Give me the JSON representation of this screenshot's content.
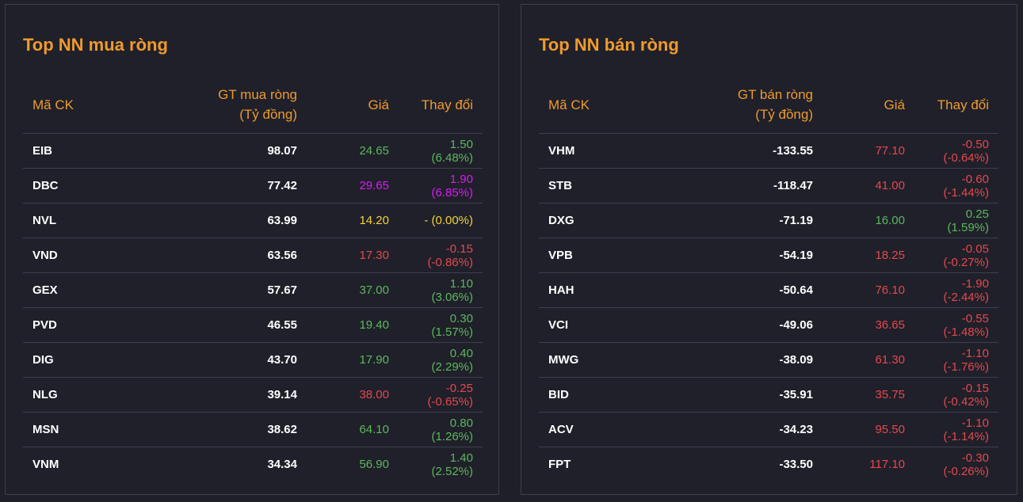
{
  "colors": {
    "up": "#5cb85c",
    "down": "#e5484d",
    "ceiling": "#d91cf0",
    "reference": "#f2d33a",
    "accent": "#ef9a2c"
  },
  "buy": {
    "title": "Top NN mua ròng",
    "headers": {
      "symbol": "Mã CK",
      "value_line1": "GT mua ròng",
      "value_line2": "(Tỷ đồng)",
      "price": "Giá",
      "change": "Thay đổi"
    },
    "rows": [
      {
        "symbol": "EIB",
        "value": "98.07",
        "price": "24.65",
        "change": "1.50 (6.48%)",
        "status": "up"
      },
      {
        "symbol": "DBC",
        "value": "77.42",
        "price": "29.65",
        "change": "1.90 (6.85%)",
        "status": "ceiling"
      },
      {
        "symbol": "NVL",
        "value": "63.99",
        "price": "14.20",
        "change": "- (0.00%)",
        "status": "reference"
      },
      {
        "symbol": "VND",
        "value": "63.56",
        "price": "17.30",
        "change": "-0.15 (-0.86%)",
        "status": "down"
      },
      {
        "symbol": "GEX",
        "value": "57.67",
        "price": "37.00",
        "change": "1.10 (3.06%)",
        "status": "up"
      },
      {
        "symbol": "PVD",
        "value": "46.55",
        "price": "19.40",
        "change": "0.30 (1.57%)",
        "status": "up"
      },
      {
        "symbol": "DIG",
        "value": "43.70",
        "price": "17.90",
        "change": "0.40 (2.29%)",
        "status": "up"
      },
      {
        "symbol": "NLG",
        "value": "39.14",
        "price": "38.00",
        "change": "-0.25 (-0.65%)",
        "status": "down"
      },
      {
        "symbol": "MSN",
        "value": "38.62",
        "price": "64.10",
        "change": "0.80 (1.26%)",
        "status": "up"
      },
      {
        "symbol": "VNM",
        "value": "34.34",
        "price": "56.90",
        "change": "1.40 (2.52%)",
        "status": "up"
      }
    ]
  },
  "sell": {
    "title": "Top NN bán ròng",
    "headers": {
      "symbol": "Mã CK",
      "value_line1": "GT bán ròng",
      "value_line2": "(Tỷ đồng)",
      "price": "Giá",
      "change": "Thay đổi"
    },
    "rows": [
      {
        "symbol": "VHM",
        "value": "-133.55",
        "price": "77.10",
        "change": "-0.50 (-0.64%)",
        "status": "down"
      },
      {
        "symbol": "STB",
        "value": "-118.47",
        "price": "41.00",
        "change": "-0.60 (-1.44%)",
        "status": "down"
      },
      {
        "symbol": "DXG",
        "value": "-71.19",
        "price": "16.00",
        "change": "0.25 (1.59%)",
        "status": "up"
      },
      {
        "symbol": "VPB",
        "value": "-54.19",
        "price": "18.25",
        "change": "-0.05 (-0.27%)",
        "status": "down"
      },
      {
        "symbol": "HAH",
        "value": "-50.64",
        "price": "76.10",
        "change": "-1.90 (-2.44%)",
        "status": "down"
      },
      {
        "symbol": "VCI",
        "value": "-49.06",
        "price": "36.65",
        "change": "-0.55 (-1.48%)",
        "status": "down"
      },
      {
        "symbol": "MWG",
        "value": "-38.09",
        "price": "61.30",
        "change": "-1.10 (-1.76%)",
        "status": "down"
      },
      {
        "symbol": "BID",
        "value": "-35.91",
        "price": "35.75",
        "change": "-0.15 (-0.42%)",
        "status": "down"
      },
      {
        "symbol": "ACV",
        "value": "-34.23",
        "price": "95.50",
        "change": "-1.10 (-1.14%)",
        "status": "down"
      },
      {
        "symbol": "FPT",
        "value": "-33.50",
        "price": "117.10",
        "change": "-0.30 (-0.26%)",
        "status": "down"
      }
    ]
  }
}
